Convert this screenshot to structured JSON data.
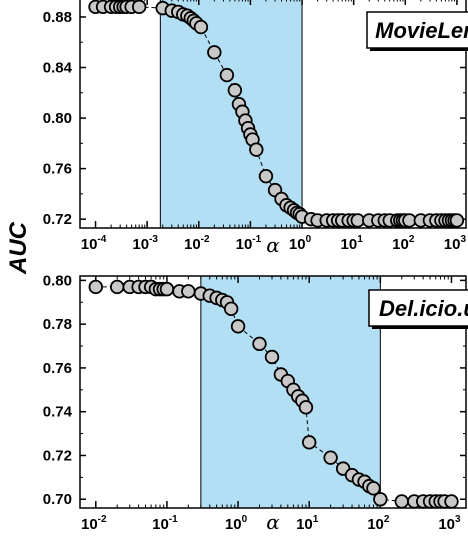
{
  "figure": {
    "ylabel": "AUC"
  },
  "chart_data": [
    {
      "type": "scatter",
      "title": "MovieLens",
      "xlabel": "α",
      "ylabel": "AUC",
      "xscale": "log",
      "xlim": [
        5e-05,
        1500
      ],
      "ylim": [
        0.713,
        0.895
      ],
      "legend_position": "top-right",
      "shaded_region": {
        "x_start": 0.0018,
        "x_end": 1.0,
        "color": "#b3dff5"
      },
      "xticks": [
        {
          "base": "10",
          "exp": "-4",
          "value": 0.0001
        },
        {
          "base": "10",
          "exp": "-3",
          "value": 0.001
        },
        {
          "base": "10",
          "exp": "-2",
          "value": 0.01
        },
        {
          "base": "10",
          "exp": "-1",
          "value": 0.1
        },
        {
          "base": "10",
          "exp": "0",
          "value": 1
        },
        {
          "base": "10",
          "exp": "1",
          "value": 10
        },
        {
          "base": "10",
          "exp": "2",
          "value": 100
        },
        {
          "base": "10",
          "exp": "3",
          "value": 1000
        }
      ],
      "yticks": [
        "0.72",
        "0.76",
        "0.80",
        "0.84",
        "0.88"
      ],
      "ytick_values": [
        0.72,
        0.76,
        0.8,
        0.84,
        0.88
      ],
      "x": [
        0.0001,
        0.00014,
        0.0002,
        0.00025,
        0.0003,
        0.00035,
        0.0004,
        0.0005,
        0.0007,
        0.002,
        0.003,
        0.004,
        0.005,
        0.006,
        0.007,
        0.008,
        0.009,
        0.011,
        0.02,
        0.035,
        0.05,
        0.06,
        0.07,
        0.08,
        0.09,
        0.1,
        0.11,
        0.13,
        0.2,
        0.3,
        0.4,
        0.5,
        0.6,
        0.7,
        0.8,
        0.9,
        1.0,
        1.5,
        2,
        3,
        4,
        5,
        6,
        8,
        10,
        12,
        20,
        30,
        40,
        50,
        70,
        80,
        90,
        100,
        120,
        200,
        300,
        400,
        500,
        600,
        700,
        800,
        900,
        1000
      ],
      "y": [
        0.888,
        0.888,
        0.888,
        0.888,
        0.888,
        0.888,
        0.888,
        0.888,
        0.888,
        0.887,
        0.885,
        0.884,
        0.882,
        0.881,
        0.879,
        0.877,
        0.875,
        0.872,
        0.852,
        0.834,
        0.822,
        0.811,
        0.805,
        0.798,
        0.792,
        0.787,
        0.783,
        0.775,
        0.754,
        0.743,
        0.736,
        0.731,
        0.729,
        0.727,
        0.725,
        0.724,
        0.722,
        0.72,
        0.719,
        0.719,
        0.719,
        0.719,
        0.719,
        0.719,
        0.719,
        0.719,
        0.719,
        0.719,
        0.719,
        0.719,
        0.719,
        0.719,
        0.719,
        0.719,
        0.719,
        0.719,
        0.719,
        0.719,
        0.719,
        0.719,
        0.719,
        0.719,
        0.719,
        0.719
      ]
    },
    {
      "type": "scatter",
      "title": "Del.icio.us",
      "xlabel": "α",
      "ylabel": "AUC",
      "xscale": "log",
      "xlim": [
        0.006,
        1600
      ],
      "ylim": [
        0.696,
        0.802
      ],
      "legend_position": "top-right",
      "shaded_region": {
        "x_start": 0.3,
        "x_end": 100,
        "color": "#b3dff5"
      },
      "xticks": [
        {
          "base": "10",
          "exp": "-2",
          "value": 0.01
        },
        {
          "base": "10",
          "exp": "-1",
          "value": 0.1
        },
        {
          "base": "10",
          "exp": "0",
          "value": 1
        },
        {
          "base": "10",
          "exp": "1",
          "value": 10
        },
        {
          "base": "10",
          "exp": "2",
          "value": 100
        },
        {
          "base": "10",
          "exp": "3",
          "value": 1000
        }
      ],
      "yticks": [
        "0.70",
        "0.72",
        "0.74",
        "0.76",
        "0.78",
        "0.80"
      ],
      "ytick_values": [
        0.7,
        0.72,
        0.74,
        0.76,
        0.78,
        0.8
      ],
      "x": [
        0.01,
        0.02,
        0.03,
        0.04,
        0.05,
        0.06,
        0.07,
        0.08,
        0.09,
        0.1,
        0.15,
        0.2,
        0.3,
        0.4,
        0.5,
        0.6,
        0.7,
        0.8,
        1.0,
        2,
        3,
        4,
        5,
        6,
        7,
        8,
        9,
        10,
        20,
        30,
        40,
        50,
        60,
        70,
        80,
        100,
        200,
        300,
        400,
        500,
        600,
        700,
        800,
        1000
      ],
      "y": [
        0.797,
        0.797,
        0.797,
        0.797,
        0.797,
        0.797,
        0.796,
        0.796,
        0.796,
        0.796,
        0.795,
        0.795,
        0.794,
        0.793,
        0.792,
        0.791,
        0.79,
        0.787,
        0.779,
        0.771,
        0.765,
        0.757,
        0.754,
        0.75,
        0.747,
        0.745,
        0.742,
        0.726,
        0.719,
        0.714,
        0.711,
        0.709,
        0.708,
        0.706,
        0.705,
        0.7,
        0.699,
        0.699,
        0.699,
        0.699,
        0.699,
        0.699,
        0.699,
        0.699
      ]
    }
  ]
}
